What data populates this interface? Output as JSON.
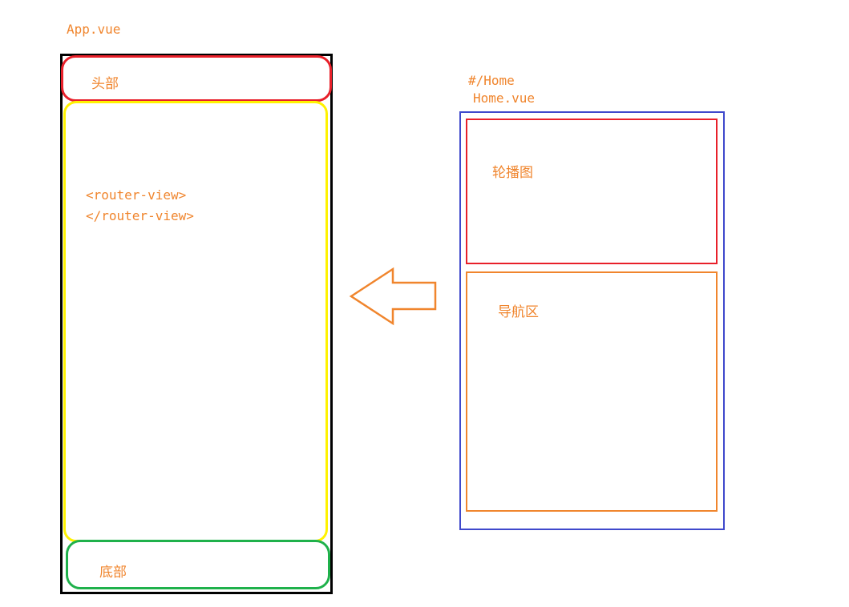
{
  "app": {
    "title": "App.vue",
    "header_label": "头部",
    "router_open": "<router-view>",
    "router_close": "</router-view>",
    "footer_label": "底部"
  },
  "home": {
    "route": "#/Home",
    "title": "Home.vue",
    "carousel_label": "轮播图",
    "nav_label": "导航区"
  },
  "colors": {
    "text": "#f0852d",
    "app_frame": "#000000",
    "header": "#e8202a",
    "content": "#fff200",
    "footer": "#1fb14b",
    "home_frame": "#3f48cc",
    "carousel": "#e8202a",
    "nav": "#f0852d",
    "arrow": "#f0852d"
  }
}
